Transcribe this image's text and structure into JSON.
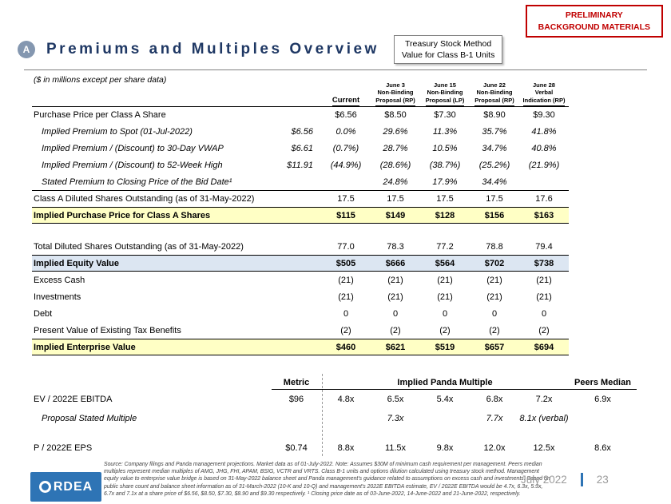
{
  "badge": {
    "line1": "PRELIMINARY",
    "line2": "BACKGROUND MATERIALS"
  },
  "header": {
    "marker": "A",
    "title": "Premiums and Multiples Overview",
    "callout": {
      "line1": "Treasury Stock Method",
      "line2": "Value for Class B-1 Units"
    }
  },
  "main_table": {
    "note": "($ in millions except per share data)",
    "headers": {
      "current": "Current",
      "cols": [
        [
          "June 3",
          "Non-Binding",
          "Proposal (RP)"
        ],
        [
          "June 15",
          "Non-Binding",
          "Proposal (LP)"
        ],
        [
          "June 22",
          "Non-Binding",
          "Proposal (RP)"
        ],
        [
          "June 28",
          "Verbal",
          "Indication (RP)"
        ]
      ]
    },
    "rows": [
      {
        "label": "Purchase Price per Class A Share",
        "metric": "",
        "values": [
          "$6.56",
          "$8.50",
          "$7.30",
          "$8.90",
          "$9.30"
        ],
        "style": "topline"
      },
      {
        "label": "Implied Premium to Spot (01-Jul-2022)",
        "metric": "$6.56",
        "values": [
          "0.0%",
          "29.6%",
          "11.3%",
          "35.7%",
          "41.8%"
        ],
        "style": "italic indent"
      },
      {
        "label": "Implied Premium / (Discount) to 30-Day VWAP",
        "metric": "$6.61",
        "values": [
          "(0.7%)",
          "28.7%",
          "10.5%",
          "34.7%",
          "40.8%"
        ],
        "style": "italic indent"
      },
      {
        "label": "Implied Premium / (Discount) to 52-Week High",
        "metric": "$11.91",
        "values": [
          "(44.9%)",
          "(28.6%)",
          "(38.7%)",
          "(25.2%)",
          "(21.9%)"
        ],
        "style": "italic indent"
      },
      {
        "label": "Stated Premium to Closing Price of the Bid Date¹",
        "metric": "",
        "values": [
          "",
          "24.8%",
          "17.9%",
          "34.4%",
          ""
        ],
        "style": "italic indent"
      },
      {
        "label": "Class A Diluted Shares Outstanding (as of 31-May-2022)",
        "metric": "",
        "values": [
          "17.5",
          "17.5",
          "17.5",
          "17.5",
          "17.6"
        ],
        "style": "topline"
      },
      {
        "label": "Implied Purchase Price for Class A Shares",
        "metric": "",
        "values": [
          "$115",
          "$149",
          "$128",
          "$156",
          "$163"
        ],
        "style": "bold yellow"
      },
      {
        "spacer": true
      },
      {
        "label": "Total Diluted Shares Outstanding (as of 31-May-2022)",
        "metric": "",
        "values": [
          "77.0",
          "78.3",
          "77.2",
          "78.8",
          "79.4"
        ],
        "style": ""
      },
      {
        "label": "Implied Equity Value",
        "metric": "",
        "values": [
          "$505",
          "$666",
          "$564",
          "$702",
          "$738"
        ],
        "style": "bold blue"
      },
      {
        "label": "Excess Cash",
        "metric": "",
        "values": [
          "(21)",
          "(21)",
          "(21)",
          "(21)",
          "(21)"
        ],
        "style": ""
      },
      {
        "label": "Investments",
        "metric": "",
        "values": [
          "(21)",
          "(21)",
          "(21)",
          "(21)",
          "(21)"
        ],
        "style": ""
      },
      {
        "label": "Debt",
        "metric": "",
        "values": [
          "0",
          "0",
          "0",
          "0",
          "0"
        ],
        "style": ""
      },
      {
        "label": "Present Value of Existing Tax Benefits",
        "metric": "",
        "values": [
          "(2)",
          "(2)",
          "(2)",
          "(2)",
          "(2)"
        ],
        "style": ""
      },
      {
        "label": "Implied Enterprise Value",
        "metric": "",
        "values": [
          "$460",
          "$621",
          "$519",
          "$657",
          "$694"
        ],
        "style": "bold yellow"
      }
    ]
  },
  "multiples": {
    "headers": {
      "metric": "Metric",
      "panda": "Implied Panda Multiple",
      "peers": "Peers Median"
    },
    "rows": [
      {
        "label": "EV / 2022E EBITDA",
        "metric": "$96",
        "values": [
          "4.8x",
          "6.5x",
          "5.4x",
          "6.8x",
          "7.2x"
        ],
        "peers": "6.9x",
        "style": ""
      },
      {
        "label": "Proposal Stated Multiple",
        "metric": "",
        "values": [
          "",
          "7.3x",
          "",
          "7.7x",
          "8.1x (verbal)"
        ],
        "peers": "",
        "style": "italic indent"
      },
      {
        "spacer": true
      },
      {
        "label": "P / 2022E EPS",
        "metric": "$0.74",
        "values": [
          "8.8x",
          "11.5x",
          "9.8x",
          "12.0x",
          "12.5x"
        ],
        "peers": "8.6x",
        "style": ""
      }
    ]
  },
  "footer": {
    "logo_text": "RDEA",
    "source": "Source: Company filings and Panda management projections. Market data as of 01-July-2022. Note: Assumes $30M of minimum cash requirement per management. Peers median multiples represent median multiples of AMG, JHG, FHI, APAM, BSIG, VCTR and VRTS. Class B-1 units and options dilution calculated using treasury stock method. Management equity value to enterprise value bridge is based on 31-May-2022 balance sheet and Panda management's guidance related to assumptions on excess cash and investments. Based on public share count and balance sheet information as of 31-March-2022 (10-K and 10-Q) and management's 2022E EBITDA estimate, EV / 2022E EBITDA would be 4.7x, 6.3x, 5.3x, 6.7x and 7.1x at a share price of $6.56, $8.50, $7.30, $8.90 and $9.30 respectively. ¹ Closing price date as of 03-June-2022, 14-June-2022 and 21-June-2022, respectively.",
    "date": "July 2022",
    "page": "23"
  }
}
